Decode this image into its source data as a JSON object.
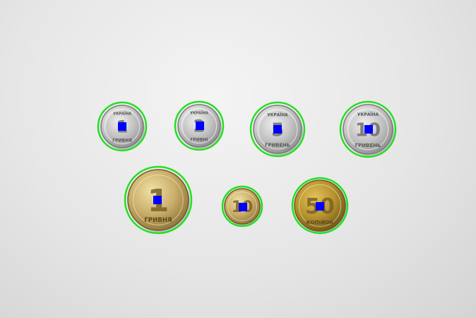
{
  "scene": {
    "background_color": "#e6e6e6",
    "detection_ring_color": "#22e022",
    "center_marker_color": "#0000ff",
    "coins": [
      {
        "name": "coin-1-hryvnia-silver",
        "denomination": "1",
        "caption": "ГРИВНЯ",
        "top_text": "УКРАЇНА",
        "metal": "silver"
      },
      {
        "name": "coin-2-hryvnia-silver",
        "denomination": "2",
        "caption": "ГРИВНІ",
        "top_text": "УКРАЇНА",
        "metal": "silver"
      },
      {
        "name": "coin-5-hryvnia-silver",
        "denomination": "5",
        "caption": "ГРИВЕНЬ",
        "top_text": "УКРАЇНА",
        "metal": "silver"
      },
      {
        "name": "coin-10-hryvnia-silver",
        "denomination": "10",
        "caption": "ГРИВЕНЬ",
        "top_text": "УКРАЇНА",
        "metal": "silver"
      },
      {
        "name": "coin-1-hryvnia-gold",
        "denomination": "1",
        "caption": "ГРИВНЯ",
        "top_text": "",
        "metal": "gold"
      },
      {
        "name": "coin-10-kopiyok-gold",
        "denomination": "10",
        "caption": "",
        "top_text": "",
        "metal": "gold"
      },
      {
        "name": "coin-50-kopiyok-gold",
        "denomination": "50",
        "caption": "КОПІЙОК",
        "top_text": "",
        "metal": "gold"
      }
    ]
  }
}
